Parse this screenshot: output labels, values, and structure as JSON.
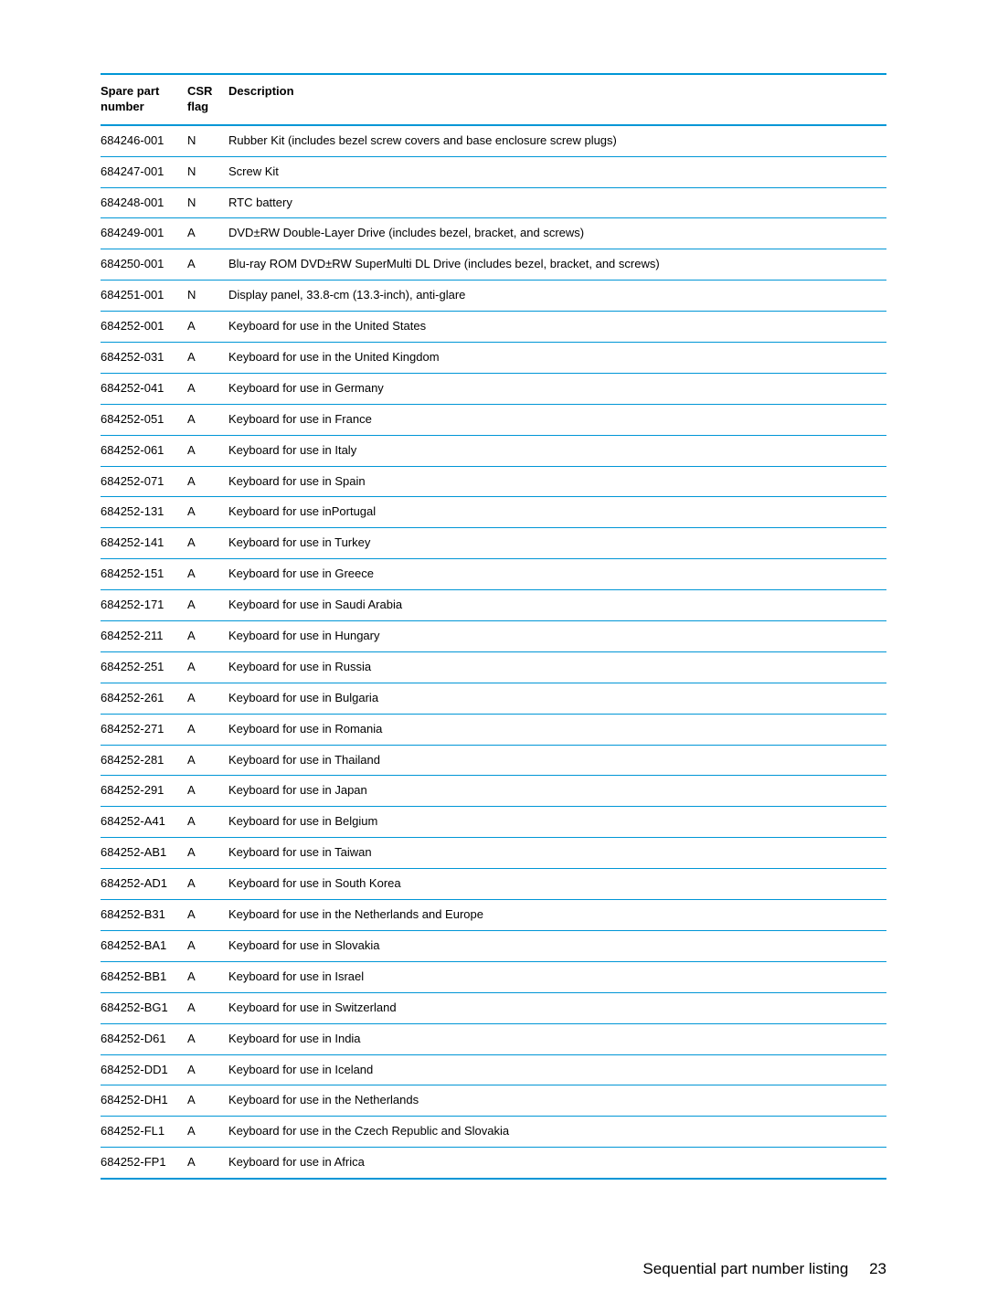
{
  "table": {
    "columns": {
      "number": "Spare part number",
      "csr": "CSR flag",
      "desc": "Description"
    },
    "rows": [
      {
        "number": "684246-001",
        "csr": "N",
        "desc": "Rubber Kit (includes bezel screw covers and base enclosure screw plugs)"
      },
      {
        "number": "684247-001",
        "csr": "N",
        "desc": "Screw Kit"
      },
      {
        "number": "684248-001",
        "csr": "N",
        "desc": "RTC battery"
      },
      {
        "number": "684249-001",
        "csr": "A",
        "desc": "DVD±RW Double-Layer Drive (includes bezel, bracket, and screws)"
      },
      {
        "number": "684250-001",
        "csr": "A",
        "desc": "Blu-ray ROM DVD±RW SuperMulti DL Drive (includes bezel, bracket, and screws)"
      },
      {
        "number": "684251-001",
        "csr": "N",
        "desc": "Display panel, 33.8-cm (13.3-inch), anti-glare"
      },
      {
        "number": "684252-001",
        "csr": "A",
        "desc": "Keyboard for use in the United States"
      },
      {
        "number": "684252-031",
        "csr": "A",
        "desc": "Keyboard for use in the United Kingdom"
      },
      {
        "number": "684252-041",
        "csr": "A",
        "desc": "Keyboard for use in Germany"
      },
      {
        "number": "684252-051",
        "csr": "A",
        "desc": "Keyboard for use in France"
      },
      {
        "number": "684252-061",
        "csr": "A",
        "desc": "Keyboard for use in Italy"
      },
      {
        "number": "684252-071",
        "csr": "A",
        "desc": "Keyboard for use in Spain"
      },
      {
        "number": "684252-131",
        "csr": "A",
        "desc": "Keyboard for use inPortugal"
      },
      {
        "number": "684252-141",
        "csr": "A",
        "desc": "Keyboard for use in Turkey"
      },
      {
        "number": "684252-151",
        "csr": "A",
        "desc": "Keyboard for use in Greece"
      },
      {
        "number": "684252-171",
        "csr": "A",
        "desc": "Keyboard for use in Saudi Arabia"
      },
      {
        "number": "684252-211",
        "csr": "A",
        "desc": "Keyboard for use in Hungary"
      },
      {
        "number": "684252-251",
        "csr": "A",
        "desc": "Keyboard for use in Russia"
      },
      {
        "number": "684252-261",
        "csr": "A",
        "desc": "Keyboard for use in Bulgaria"
      },
      {
        "number": "684252-271",
        "csr": "A",
        "desc": "Keyboard for use in Romania"
      },
      {
        "number": "684252-281",
        "csr": "A",
        "desc": "Keyboard for use in Thailand"
      },
      {
        "number": "684252-291",
        "csr": "A",
        "desc": "Keyboard for use in Japan"
      },
      {
        "number": "684252-A41",
        "csr": "A",
        "desc": "Keyboard for use in Belgium"
      },
      {
        "number": "684252-AB1",
        "csr": "A",
        "desc": "Keyboard for use in Taiwan"
      },
      {
        "number": "684252-AD1",
        "csr": "A",
        "desc": "Keyboard for use in South Korea"
      },
      {
        "number": "684252-B31",
        "csr": "A",
        "desc": "Keyboard for use in the Netherlands and Europe"
      },
      {
        "number": "684252-BA1",
        "csr": "A",
        "desc": "Keyboard for use in Slovakia"
      },
      {
        "number": "684252-BB1",
        "csr": "A",
        "desc": "Keyboard for use in Israel"
      },
      {
        "number": "684252-BG1",
        "csr": "A",
        "desc": "Keyboard for use in Switzerland"
      },
      {
        "number": "684252-D61",
        "csr": "A",
        "desc": "Keyboard for use in India"
      },
      {
        "number": "684252-DD1",
        "csr": "A",
        "desc": "Keyboard for use in Iceland"
      },
      {
        "number": "684252-DH1",
        "csr": "A",
        "desc": "Keyboard for use in the Netherlands"
      },
      {
        "number": "684252-FL1",
        "csr": "A",
        "desc": "Keyboard for use in the Czech Republic and Slovakia"
      },
      {
        "number": "684252-FP1",
        "csr": "A",
        "desc": "Keyboard for use in Africa"
      }
    ],
    "style": {
      "border_color": "#0096d6",
      "header_border_width": 2,
      "row_border_width": 1,
      "font_size": 13,
      "text_color": "#000000",
      "background_color": "#ffffff"
    }
  },
  "footer": {
    "title": "Sequential part number listing",
    "page": "23",
    "font_size": 17
  }
}
